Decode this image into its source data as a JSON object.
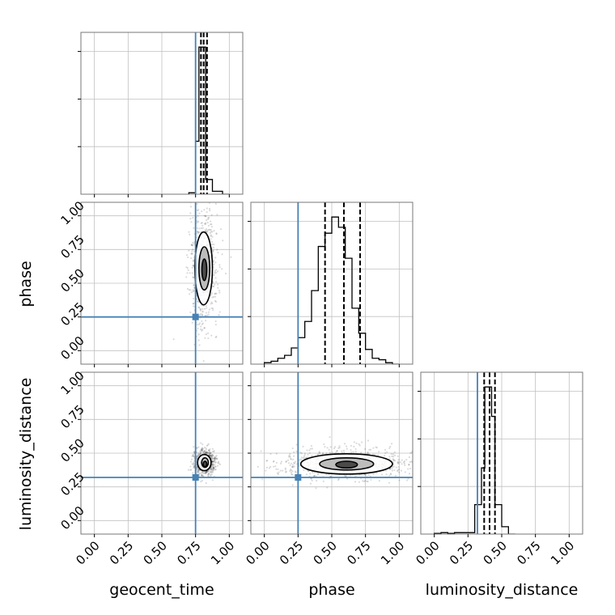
{
  "figure": {
    "type": "corner-plot",
    "parameters": [
      "geocent_time",
      "phase",
      "luminosity_distance"
    ],
    "tick_values": [
      0.0,
      0.25,
      0.5,
      0.75,
      1.0
    ],
    "tick_labels": [
      "0.00",
      "0.25",
      "0.50",
      "0.75",
      "1.00"
    ],
    "colors": {
      "truth": "#4682b4",
      "hist": "#000000",
      "grid": "#c0c0c0",
      "quantile": "#000000"
    }
  },
  "chart_data": [
    {
      "type": "bar",
      "panel": "hist-geocent_time",
      "xlabel": "",
      "xlim": [
        -0.1,
        1.1
      ],
      "ylim": [
        0,
        1.1
      ],
      "bin_edges": [
        0.7,
        0.75,
        0.775,
        0.8,
        0.825,
        0.85,
        0.875,
        0.9,
        0.95,
        1.0
      ],
      "values": [
        0.01,
        0.36,
        1.0,
        1.0,
        0.1,
        0.1,
        0.02,
        0.02,
        0.0
      ],
      "truth": 0.75,
      "quantiles": [
        0.79,
        0.81,
        0.835
      ]
    },
    {
      "type": "bar",
      "panel": "hist-phase",
      "xlabel": "phase",
      "xlim": [
        -0.1,
        1.1
      ],
      "ylim": [
        0,
        1.1
      ],
      "bin_edges": [
        0.0,
        0.05,
        0.1,
        0.15,
        0.2,
        0.25,
        0.3,
        0.35,
        0.4,
        0.45,
        0.5,
        0.55,
        0.6,
        0.65,
        0.7,
        0.75,
        0.8,
        0.85,
        0.9,
        0.95,
        1.0
      ],
      "values": [
        0.01,
        0.02,
        0.04,
        0.06,
        0.11,
        0.18,
        0.29,
        0.5,
        0.8,
        0.89,
        1.0,
        0.93,
        0.72,
        0.38,
        0.21,
        0.1,
        0.04,
        0.03,
        0.01,
        0.0
      ],
      "truth": 0.25,
      "quantiles": [
        0.45,
        0.59,
        0.71
      ]
    },
    {
      "type": "bar",
      "panel": "hist-luminosity_distance",
      "xlabel": "luminosity_distance",
      "xlim": [
        -0.1,
        1.1
      ],
      "ylim": [
        0,
        1.1
      ],
      "bin_edges": [
        0.0,
        0.05,
        0.1,
        0.15,
        0.2,
        0.25,
        0.3,
        0.35,
        0.375,
        0.4,
        0.425,
        0.45,
        0.5,
        0.55,
        0.6
      ],
      "values": [
        0.005,
        0.01,
        0.005,
        0.01,
        0.01,
        0.01,
        0.2,
        0.45,
        1.0,
        1.0,
        0.8,
        0.2,
        0.05,
        0.0
      ],
      "truth": 0.32,
      "quantiles": [
        0.37,
        0.41,
        0.45
      ]
    },
    {
      "type": "scatter",
      "panel": "geocent_time-vs-phase",
      "xlabel": "",
      "ylabel": "phase",
      "xlim": [
        -0.1,
        1.1
      ],
      "ylim": [
        -0.1,
        1.1
      ],
      "truth": {
        "x": 0.75,
        "y": 0.25
      },
      "contours": [
        {
          "cx": 0.81,
          "cy": 0.61,
          "rx": 0.065,
          "ry": 0.27,
          "style": "outer"
        },
        {
          "cx": 0.815,
          "cy": 0.61,
          "rx": 0.04,
          "ry": 0.16,
          "style": "inner"
        },
        {
          "cx": 0.815,
          "cy": 0.6,
          "rx": 0.018,
          "ry": 0.08,
          "style": "core"
        }
      ]
    },
    {
      "type": "scatter",
      "panel": "geocent_time-vs-luminosity_distance",
      "xlabel": "geocent_time",
      "ylabel": "luminosity_distance",
      "xlim": [
        -0.1,
        1.1
      ],
      "ylim": [
        -0.1,
        1.1
      ],
      "truth": {
        "x": 0.75,
        "y": 0.32
      },
      "contours": [
        {
          "cx": 0.815,
          "cy": 0.43,
          "rx": 0.05,
          "ry": 0.06,
          "style": "outer"
        },
        {
          "cx": 0.82,
          "cy": 0.43,
          "rx": 0.025,
          "ry": 0.035,
          "style": "inner"
        },
        {
          "cx": 0.82,
          "cy": 0.42,
          "rx": 0.013,
          "ry": 0.02,
          "style": "core"
        }
      ]
    },
    {
      "type": "scatter",
      "panel": "phase-vs-luminosity_distance",
      "xlabel": "phase",
      "ylabel": "",
      "xlim": [
        -0.1,
        1.1
      ],
      "ylim": [
        -0.1,
        1.1
      ],
      "truth": {
        "x": 0.25,
        "y": 0.32
      },
      "contours": [
        {
          "cx": 0.61,
          "cy": 0.42,
          "rx": 0.34,
          "ry": 0.075,
          "style": "outer"
        },
        {
          "cx": 0.61,
          "cy": 0.42,
          "rx": 0.2,
          "ry": 0.045,
          "style": "inner"
        },
        {
          "cx": 0.61,
          "cy": 0.415,
          "rx": 0.08,
          "ry": 0.025,
          "style": "core"
        }
      ]
    }
  ]
}
